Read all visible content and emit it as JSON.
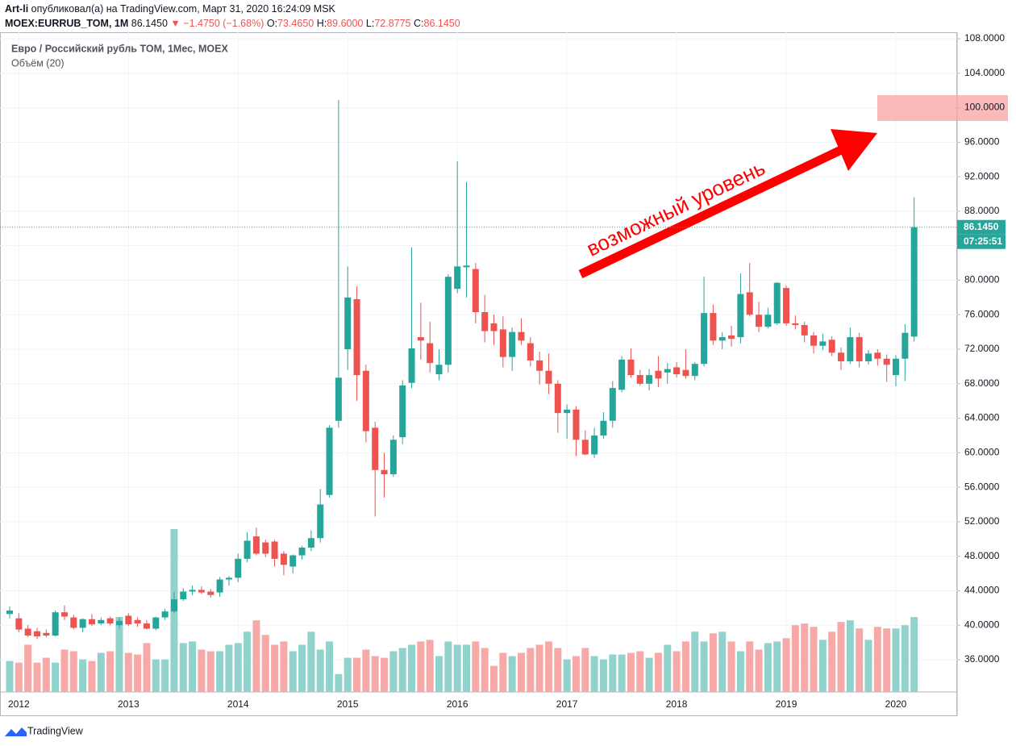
{
  "header": {
    "author": "Art-li",
    "published": "опубликовал(а) на TradingView.com, Март 31, 2020 16:24:09 MSK",
    "symbol": "MOEX:EURRUB_TOM, 1M",
    "price": "86.1450",
    "arrow": "▼",
    "change": "−1.4750 (−1.68%)",
    "o_label": "O:",
    "o": "73.4650",
    "h_label": "H:",
    "h": "89.6000",
    "l_label": "L:",
    "l": "72.8775",
    "c_label": "C:",
    "c": "86.1450"
  },
  "footer": {
    "brand": "TradingView"
  },
  "chart_data": {
    "type": "candlestick",
    "title": "Евро / Российский рубль TOM, 1Мес, MOEX",
    "subtitle": "Объём (20)",
    "annotation": "возможный уровень",
    "up_color": "#26a69a",
    "down_color": "#ef5350",
    "volume_up_color": "#92d2cc",
    "volume_down_color": "#f7a9a7",
    "grid": true,
    "ylim": [
      32.26,
      108.75
    ],
    "yticks": [
      {
        "value": 36,
        "label": "36.0000"
      },
      {
        "value": 40,
        "label": "40.0000"
      },
      {
        "value": 44,
        "label": "44.0000"
      },
      {
        "value": 48,
        "label": "48.0000"
      },
      {
        "value": 52,
        "label": "52.0000"
      },
      {
        "value": 56,
        "label": "56.0000"
      },
      {
        "value": 60,
        "label": "60.0000"
      },
      {
        "value": 64,
        "label": "64.0000"
      },
      {
        "value": 68,
        "label": "68.0000"
      },
      {
        "value": 72,
        "label": "72.0000"
      },
      {
        "value": 76,
        "label": "76.0000"
      },
      {
        "value": 80,
        "label": "80.0000"
      },
      {
        "value": 84,
        "label": "84.0000"
      },
      {
        "value": 88,
        "label": "88.0000"
      },
      {
        "value": 92,
        "label": "92.0000"
      },
      {
        "value": 96,
        "label": "96.0000"
      },
      {
        "value": 100,
        "label": "100.0000"
      },
      {
        "value": 104,
        "label": "104.0000"
      },
      {
        "value": 108,
        "label": "108.0000"
      }
    ],
    "last_price": {
      "value": 86.145,
      "label": "86.1450"
    },
    "countdown": "07:25:51",
    "categories": [
      null,
      "2012",
      null,
      null,
      null,
      null,
      null,
      null,
      null,
      null,
      null,
      null,
      null,
      "2013",
      null,
      null,
      null,
      null,
      null,
      null,
      null,
      null,
      null,
      null,
      null,
      "2014",
      null,
      null,
      null,
      null,
      null,
      null,
      null,
      null,
      null,
      null,
      null,
      "2015",
      null,
      null,
      null,
      null,
      null,
      null,
      null,
      null,
      null,
      null,
      null,
      "2016",
      null,
      null,
      null,
      null,
      null,
      null,
      null,
      null,
      null,
      null,
      null,
      "2017",
      null,
      null,
      null,
      null,
      null,
      null,
      null,
      null,
      null,
      null,
      null,
      "2018",
      null,
      null,
      null,
      null,
      null,
      null,
      null,
      null,
      null,
      null,
      null,
      "2019",
      null,
      null,
      null,
      null,
      null,
      null,
      null,
      null,
      null,
      null,
      null,
      "2020",
      null,
      null
    ],
    "ohlc": [
      [
        41.3,
        42.2,
        40.8,
        41.7
      ],
      [
        40.8,
        41.4,
        39.2,
        39.5
      ],
      [
        39.6,
        40.0,
        38.6,
        38.8
      ],
      [
        39.3,
        39.7,
        38.4,
        38.7
      ],
      [
        39.1,
        39.5,
        38.6,
        38.8
      ],
      [
        38.8,
        41.7,
        38.7,
        41.5
      ],
      [
        41.5,
        42.3,
        40.6,
        41.0
      ],
      [
        40.9,
        41.2,
        39.5,
        39.7
      ],
      [
        39.7,
        40.8,
        39.2,
        40.7
      ],
      [
        40.7,
        41.3,
        39.9,
        40.1
      ],
      [
        40.2,
        40.9,
        40.0,
        40.6
      ],
      [
        40.8,
        41.0,
        40.0,
        40.2
      ],
      [
        40.0,
        40.9,
        39.6,
        40.5
      ],
      [
        41.1,
        41.4,
        39.9,
        40.1
      ],
      [
        40.6,
        40.9,
        39.8,
        40.2
      ],
      [
        40.2,
        40.6,
        39.5,
        39.6
      ],
      [
        39.6,
        41.0,
        39.4,
        40.9
      ],
      [
        40.9,
        41.9,
        40.6,
        41.6
      ],
      [
        41.6,
        43.8,
        41.4,
        43.0
      ],
      [
        43.0,
        44.3,
        42.8,
        43.9
      ],
      [
        43.9,
        44.6,
        43.5,
        44.1
      ],
      [
        44.1,
        44.5,
        43.6,
        43.8
      ],
      [
        43.9,
        44.2,
        43.2,
        43.5
      ],
      [
        43.8,
        45.6,
        43.3,
        45.3
      ],
      [
        45.3,
        45.7,
        44.6,
        45.5
      ],
      [
        45.5,
        48.3,
        45.0,
        47.7
      ],
      [
        47.7,
        50.8,
        47.3,
        49.8
      ],
      [
        50.3,
        51.3,
        48.1,
        48.3
      ],
      [
        49.6,
        49.9,
        47.9,
        48.3
      ],
      [
        49.7,
        49.9,
        46.8,
        47.7
      ],
      [
        48.3,
        48.6,
        45.8,
        47.0
      ],
      [
        46.8,
        48.2,
        46.0,
        48.1
      ],
      [
        48.1,
        49.2,
        47.6,
        49.0
      ],
      [
        49.0,
        51.0,
        48.6,
        50.1
      ],
      [
        50.1,
        55.8,
        49.6,
        54.0
      ],
      [
        55.1,
        63.2,
        54.8,
        62.9
      ],
      [
        63.7,
        100.9,
        62.9,
        68.7
      ],
      [
        72.0,
        81.6,
        69.6,
        78.0
      ],
      [
        77.8,
        79.3,
        66.0,
        69.0
      ],
      [
        69.5,
        70.2,
        61.2,
        62.5
      ],
      [
        62.9,
        63.6,
        52.6,
        58.0
      ],
      [
        58.0,
        60.0,
        54.8,
        57.5
      ],
      [
        57.5,
        62.0,
        57.2,
        61.5
      ],
      [
        61.8,
        68.4,
        61.0,
        67.8
      ],
      [
        68.1,
        83.8,
        67.5,
        72.1
      ],
      [
        73.4,
        77.4,
        70.8,
        73.0
      ],
      [
        72.7,
        75.2,
        69.3,
        70.4
      ],
      [
        69.1,
        72.0,
        68.4,
        70.2
      ],
      [
        70.2,
        80.7,
        69.3,
        80.4
      ],
      [
        79.0,
        93.8,
        78.5,
        81.6
      ],
      [
        81.5,
        91.4,
        78.0,
        81.7
      ],
      [
        81.3,
        82.0,
        75.0,
        76.3
      ],
      [
        76.3,
        78.3,
        72.8,
        74.1
      ],
      [
        75.0,
        76.0,
        72.5,
        74.1
      ],
      [
        74.3,
        75.8,
        69.9,
        71.1
      ],
      [
        71.1,
        74.5,
        69.5,
        74.0
      ],
      [
        74.0,
        75.6,
        72.5,
        73.0
      ],
      [
        72.7,
        73.4,
        70.0,
        70.7
      ],
      [
        70.7,
        71.7,
        67.9,
        69.5
      ],
      [
        69.5,
        71.5,
        66.8,
        68.0
      ],
      [
        68.0,
        68.4,
        62.3,
        64.6
      ],
      [
        64.6,
        65.6,
        61.6,
        65.0
      ],
      [
        65.0,
        65.4,
        59.6,
        61.5
      ],
      [
        61.5,
        62.6,
        59.7,
        59.8
      ],
      [
        59.8,
        62.9,
        59.4,
        62.0
      ],
      [
        62.0,
        64.7,
        61.6,
        63.7
      ],
      [
        63.7,
        68.3,
        62.9,
        67.5
      ],
      [
        67.3,
        71.2,
        67.0,
        70.8
      ],
      [
        70.8,
        72.1,
        68.7,
        69.0
      ],
      [
        69.0,
        69.6,
        67.8,
        68.0
      ],
      [
        68.0,
        69.7,
        67.2,
        69.0
      ],
      [
        69.5,
        71.2,
        67.6,
        68.6
      ],
      [
        69.3,
        70.4,
        68.0,
        69.7
      ],
      [
        69.9,
        70.5,
        68.7,
        69.1
      ],
      [
        69.6,
        72.0,
        68.6,
        68.9
      ],
      [
        68.9,
        70.5,
        68.4,
        70.3
      ],
      [
        70.3,
        80.4,
        70.0,
        76.2
      ],
      [
        76.2,
        77.2,
        72.5,
        73.0
      ],
      [
        73.0,
        74.0,
        72.0,
        73.4
      ],
      [
        73.6,
        74.7,
        72.3,
        73.2
      ],
      [
        73.4,
        80.8,
        72.7,
        78.4
      ],
      [
        78.6,
        82.0,
        75.8,
        76.0
      ],
      [
        76.0,
        77.5,
        74.0,
        74.6
      ],
      [
        74.6,
        76.8,
        74.4,
        76.0
      ],
      [
        75.0,
        79.8,
        74.8,
        79.7
      ],
      [
        79.1,
        79.4,
        74.7,
        75.0
      ],
      [
        75.0,
        75.9,
        74.3,
        74.8
      ],
      [
        74.8,
        75.2,
        72.8,
        73.6
      ],
      [
        73.6,
        74.0,
        71.5,
        72.4
      ],
      [
        72.4,
        73.8,
        71.9,
        72.9
      ],
      [
        73.1,
        73.5,
        71.2,
        71.6
      ],
      [
        71.6,
        72.2,
        69.6,
        70.6
      ],
      [
        70.6,
        74.5,
        70.3,
        73.4
      ],
      [
        73.4,
        73.9,
        69.9,
        70.6
      ],
      [
        70.6,
        71.9,
        70.2,
        71.5
      ],
      [
        71.6,
        72.0,
        70.1,
        70.9
      ],
      [
        70.9,
        71.4,
        68.2,
        70.2
      ],
      [
        69.0,
        71.3,
        67.7,
        70.9
      ],
      [
        70.9,
        74.9,
        68.3,
        73.9
      ],
      [
        73.465,
        89.6,
        72.8775,
        86.145
      ]
    ],
    "volume": [
      19,
      18,
      29,
      18,
      21,
      18,
      26,
      25,
      20,
      19,
      24,
      25,
      46,
      24,
      23,
      30,
      20,
      20,
      100,
      30,
      31,
      26,
      25,
      25,
      29,
      30,
      37,
      44,
      35,
      29,
      31,
      25,
      29,
      37,
      26,
      31,
      11,
      21,
      21,
      26,
      22,
      21,
      25,
      27,
      29,
      31,
      32,
      22,
      31,
      29,
      29,
      31,
      27,
      16,
      24,
      22,
      24,
      27,
      29,
      31,
      27,
      20,
      22,
      27,
      22,
      20,
      23,
      23,
      24,
      25,
      21,
      24,
      29,
      25,
      31,
      37,
      31,
      36,
      37,
      31,
      25,
      31,
      26,
      30,
      31,
      33,
      41,
      42,
      40,
      32,
      37,
      43,
      44,
      39,
      32,
      40,
      39,
      39,
      41,
      46
    ]
  }
}
